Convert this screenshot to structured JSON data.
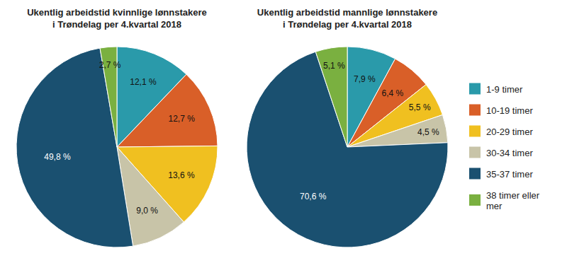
{
  "chart_data": {
    "type": "pie",
    "categories": [
      "1-9 timer",
      "10-19 timer",
      "20-29 timer",
      "30-34 timer",
      "35-37 timer",
      "38 timer eller\nmer"
    ],
    "colors": [
      "#2a9aaa",
      "#d95f28",
      "#f0c020",
      "#c8c4a8",
      "#1a5070",
      "#7ab040"
    ],
    "series": [
      {
        "name": "Ukentlig arbeidstid kvinnlige lønnstakere\ni Trøndelag per 4.kvartal 2018",
        "values": [
          12.1,
          12.7,
          13.6,
          9.0,
          49.8,
          2.7
        ],
        "value_labels": [
          "12,1 %",
          "12,7 %",
          "13,6 %",
          "9,0 %",
          "49,8 %",
          "2,7 %"
        ]
      },
      {
        "name": "Ukentlig arbeidstid mannlige lønnstakere\ni Trøndelag per 4.kvartal 2018",
        "values": [
          7.9,
          6.4,
          5.5,
          4.5,
          70.6,
          5.1
        ],
        "value_labels": [
          "7,9 %",
          "6,4 %",
          "5,5 %",
          "4,5 %",
          "70,6 %",
          "5,1 %"
        ]
      }
    ],
    "data_labels": true,
    "legend": "right"
  }
}
